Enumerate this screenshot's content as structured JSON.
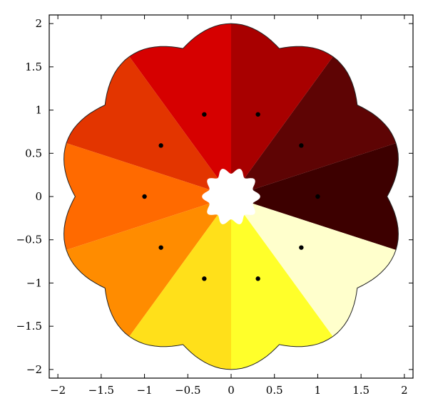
{
  "chart_data": {
    "type": "scatter",
    "title": "",
    "xlabel": "",
    "ylabel": "",
    "xlim": [
      -2.1,
      2.1
    ],
    "ylim": [
      -2.1,
      2.1
    ],
    "x_ticks": [
      "-2",
      "-1.5",
      "-1",
      "-0.5",
      "0",
      "0.5",
      "1",
      "1.5",
      "2"
    ],
    "y_ticks": [
      "2",
      "1.5",
      "1",
      "0.5",
      "0",
      "-0.5",
      "-1",
      "-1.5",
      "-2"
    ],
    "grid": false,
    "legend": "none",
    "region": {
      "description_free_shape": "10-fold star-like basin region with central hole",
      "outer_radius": 2.0,
      "inner_radius": 0.3,
      "sectors": 10,
      "sector_colors": [
        "#3d0000",
        "#5e0404",
        "#a80000",
        "#d60000",
        "#e33500",
        "#ff6a00",
        "#ff8c00",
        "#ffe01a",
        "#ffff2a",
        "#ffffcc"
      ],
      "sector_start_angles_deg": [
        -18,
        18,
        54,
        90,
        126,
        162,
        198,
        234,
        270,
        306
      ]
    },
    "series": [
      {
        "points": [
          {
            "x": 1.0,
            "y": 0.0
          },
          {
            "x": 0.81,
            "y": 0.59
          },
          {
            "x": 0.31,
            "y": 0.95
          },
          {
            "x": -0.31,
            "y": 0.95
          },
          {
            "x": -0.81,
            "y": 0.59
          },
          {
            "x": -1.0,
            "y": 0.0
          },
          {
            "x": -0.81,
            "y": -0.59
          },
          {
            "x": -0.31,
            "y": -0.95
          },
          {
            "x": 0.31,
            "y": -0.95
          },
          {
            "x": 0.81,
            "y": -0.59
          }
        ],
        "marker_color": "#000000"
      }
    ]
  }
}
